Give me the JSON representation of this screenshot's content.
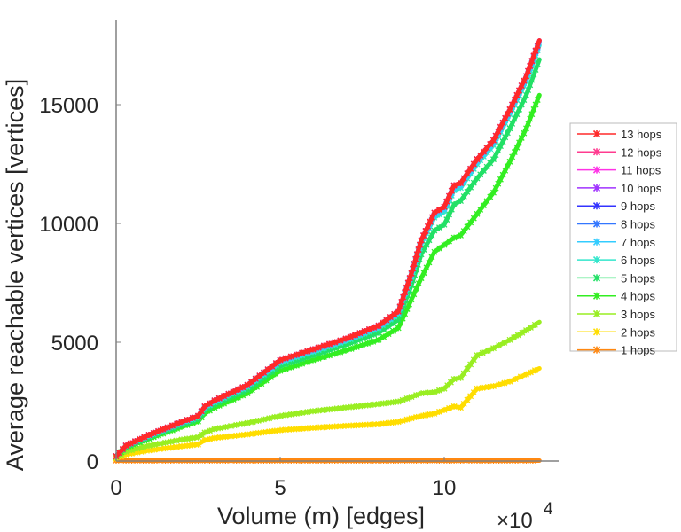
{
  "chart_data": {
    "type": "line",
    "title": "",
    "xlabel": "Volume (m) [edges]",
    "ylabel": "Average reachable vertices [vertices]",
    "x_multiplier_label": "×10",
    "x_multiplier_exp": "4",
    "xlim": [
      0,
      13.5
    ],
    "ylim": [
      0,
      18500
    ],
    "xticks": [
      0,
      5,
      10
    ],
    "xtick_labels": [
      "0",
      "5",
      "10"
    ],
    "yticks": [
      0,
      5000,
      10000,
      15000
    ],
    "ytick_labels": [
      "0",
      "5000",
      "10000",
      "15000"
    ],
    "grid": false,
    "legend_position": "right",
    "x": [
      0,
      0.3,
      1,
      2,
      2.5,
      2.7,
      3,
      4,
      5,
      6,
      7,
      8,
      8.6,
      9,
      9.3,
      9.7,
      10,
      10.3,
      10.5,
      11,
      11.5,
      12,
      12.5,
      12.9
    ],
    "series": [
      {
        "name": "13 hops",
        "color": "#ff2a2a",
        "values": [
          200,
          650,
          1100,
          1650,
          1900,
          2300,
          2550,
          3200,
          4250,
          4700,
          5150,
          5700,
          6300,
          7900,
          9300,
          10450,
          10700,
          11600,
          11700,
          12700,
          13500,
          14800,
          16200,
          17700
        ]
      },
      {
        "name": "12 hops",
        "color": "#ff3b8f",
        "values": [
          200,
          650,
          1100,
          1650,
          1900,
          2300,
          2550,
          3200,
          4250,
          4700,
          5150,
          5700,
          6300,
          7900,
          9300,
          10450,
          10700,
          11600,
          11700,
          12700,
          13500,
          14800,
          16200,
          17700
        ]
      },
      {
        "name": "11 hops",
        "color": "#ff33e6",
        "values": [
          200,
          650,
          1100,
          1650,
          1900,
          2300,
          2550,
          3200,
          4250,
          4700,
          5150,
          5700,
          6300,
          7900,
          9300,
          10450,
          10700,
          11600,
          11700,
          12700,
          13500,
          14800,
          16200,
          17700
        ]
      },
      {
        "name": "10 hops",
        "color": "#a033ff",
        "values": [
          200,
          650,
          1100,
          1650,
          1900,
          2300,
          2550,
          3200,
          4250,
          4700,
          5150,
          5700,
          6300,
          7900,
          9300,
          10450,
          10700,
          11600,
          11700,
          12700,
          13500,
          14800,
          16200,
          17700
        ]
      },
      {
        "name": "9 hops",
        "color": "#3333ff",
        "values": [
          200,
          650,
          1100,
          1650,
          1900,
          2300,
          2550,
          3200,
          4250,
          4700,
          5150,
          5700,
          6300,
          7900,
          9300,
          10450,
          10700,
          11600,
          11700,
          12700,
          13500,
          14800,
          16200,
          17700
        ]
      },
      {
        "name": "8 hops",
        "color": "#3377ff",
        "values": [
          200,
          650,
          1100,
          1650,
          1900,
          2300,
          2550,
          3200,
          4250,
          4700,
          5150,
          5700,
          6300,
          7900,
          9300,
          10450,
          10700,
          11600,
          11700,
          12700,
          13500,
          14800,
          16200,
          17650
        ]
      },
      {
        "name": "7 hops",
        "color": "#33ccff",
        "values": [
          200,
          640,
          1080,
          1620,
          1880,
          2270,
          2520,
          3170,
          4200,
          4650,
          5100,
          5650,
          6250,
          7850,
          9250,
          10350,
          10600,
          11500,
          11600,
          12600,
          13400,
          14700,
          16100,
          17600
        ]
      },
      {
        "name": "6 hops",
        "color": "#33e6cc",
        "values": [
          200,
          630,
          1060,
          1600,
          1850,
          2230,
          2480,
          3130,
          4150,
          4600,
          5050,
          5600,
          6200,
          7750,
          9150,
          10250,
          10500,
          11400,
          11500,
          12500,
          13300,
          14600,
          16000,
          17500
        ]
      },
      {
        "name": "5 hops",
        "color": "#22e066",
        "values": [
          200,
          600,
          1000,
          1520,
          1760,
          2120,
          2380,
          3000,
          4000,
          4450,
          4900,
          5400,
          5950,
          7400,
          8700,
          9700,
          9950,
          10800,
          10950,
          11900,
          12700,
          14000,
          15400,
          16900
        ]
      },
      {
        "name": "4 hops",
        "color": "#33ee22",
        "values": [
          200,
          560,
          940,
          1440,
          1670,
          2000,
          2250,
          2850,
          3800,
          4250,
          4650,
          5100,
          5600,
          6800,
          7700,
          8800,
          9100,
          9400,
          9500,
          10400,
          11300,
          12600,
          14000,
          15400
        ]
      },
      {
        "name": "3 hops",
        "color": "#99ee22",
        "values": [
          150,
          400,
          650,
          900,
          1000,
          1200,
          1350,
          1600,
          1900,
          2100,
          2250,
          2400,
          2500,
          2700,
          2850,
          2900,
          3050,
          3450,
          3500,
          4450,
          4750,
          5100,
          5500,
          5850
        ]
      },
      {
        "name": "2 hops",
        "color": "#ffdd00",
        "values": [
          100,
          280,
          450,
          620,
          700,
          880,
          970,
          1120,
          1300,
          1400,
          1480,
          1550,
          1650,
          1800,
          1900,
          2000,
          2150,
          2300,
          2250,
          3050,
          3150,
          3350,
          3650,
          3900
        ]
      },
      {
        "name": "1 hops",
        "color": "#ff8811",
        "values": [
          20,
          20,
          20,
          20,
          20,
          20,
          20,
          20,
          20,
          20,
          20,
          20,
          20,
          20,
          20,
          20,
          20,
          20,
          20,
          20,
          20,
          20,
          20,
          20
        ]
      }
    ]
  }
}
